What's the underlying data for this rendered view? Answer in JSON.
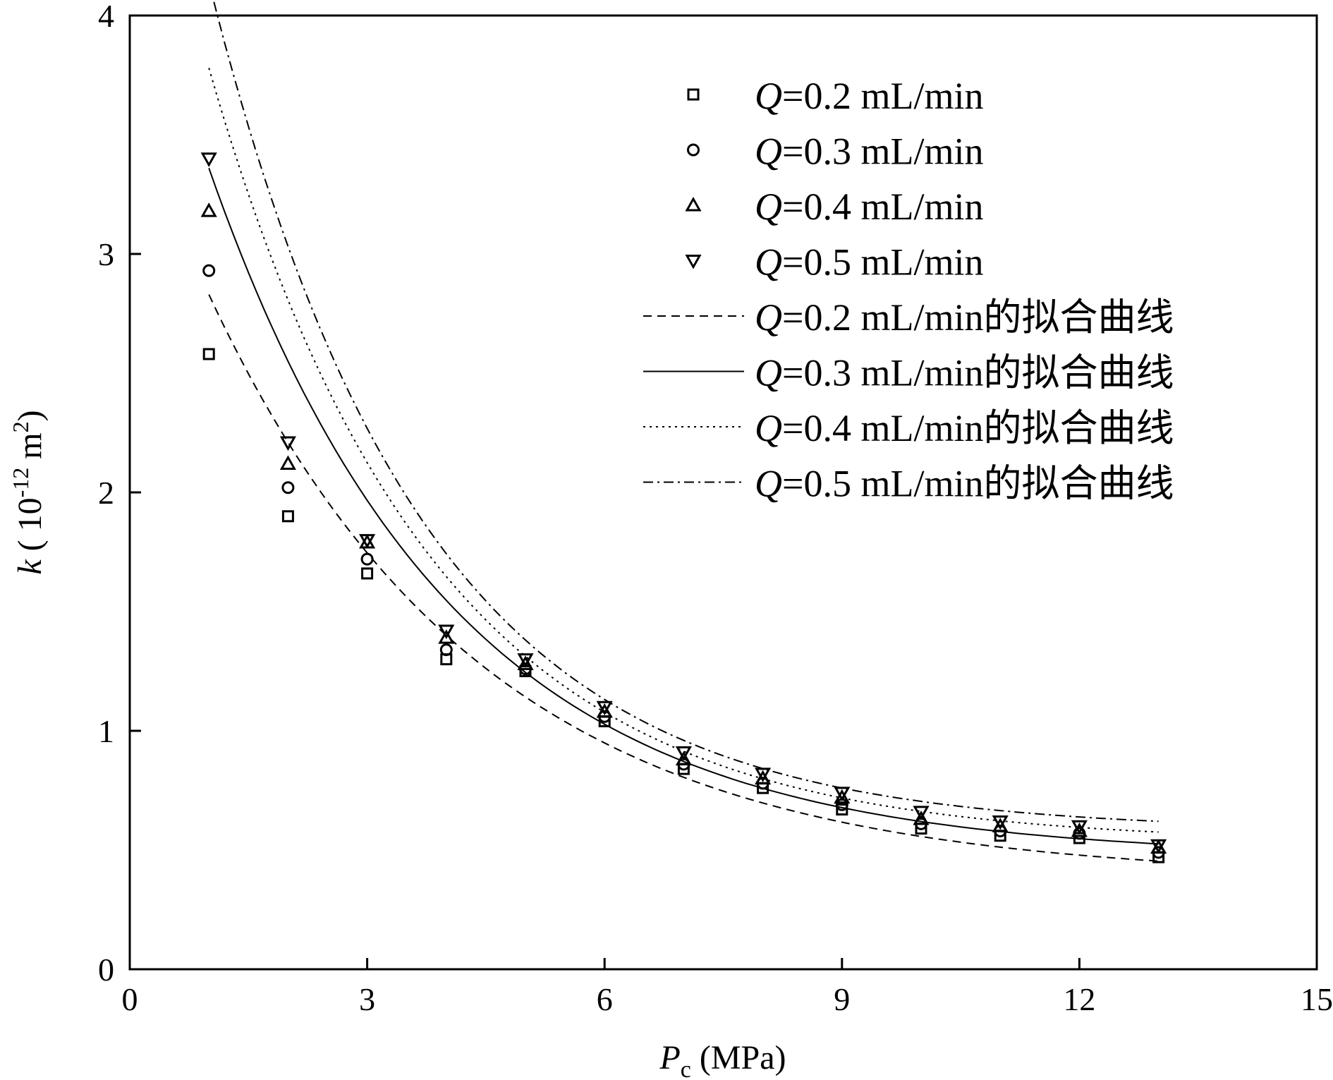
{
  "chart_data": {
    "type": "scatter",
    "title": "",
    "xlabel": {
      "symbol": "P",
      "subscript": "c",
      "unit": " (MPa)"
    },
    "ylabel": {
      "symbol": "k",
      "open": " ( 10",
      "exponent": "-12",
      "unit": " m",
      "unit_exponent": "2",
      "close": ")"
    },
    "xlim": [
      0,
      15
    ],
    "ylim": [
      0,
      4
    ],
    "xticks": [
      0,
      3,
      6,
      9,
      12,
      15
    ],
    "yticks": [
      0,
      1,
      2,
      3,
      4
    ],
    "grid": false,
    "legend_position": "top-right",
    "x": [
      1,
      2,
      3,
      4,
      5,
      6,
      7,
      8,
      9,
      10,
      11,
      12,
      13
    ],
    "series": [
      {
        "name": "Q=0.2 mL/min",
        "name_symbol": "Q",
        "name_rest": "=0.2 mL/min",
        "marker": "square",
        "values": [
          2.58,
          1.9,
          1.66,
          1.3,
          1.25,
          1.04,
          0.84,
          0.76,
          0.67,
          0.59,
          0.56,
          0.55,
          0.47
        ]
      },
      {
        "name": "Q=0.3 mL/min",
        "name_symbol": "Q",
        "name_rest": "=0.3 mL/min",
        "marker": "circle",
        "values": [
          2.93,
          2.02,
          1.72,
          1.34,
          1.26,
          1.06,
          0.86,
          0.78,
          0.69,
          0.61,
          0.58,
          0.57,
          0.49
        ]
      },
      {
        "name": "Q=0.4 mL/min",
        "name_symbol": "Q",
        "name_rest": "=0.4 mL/min",
        "marker": "triangle-up",
        "values": [
          3.18,
          2.12,
          1.79,
          1.39,
          1.28,
          1.08,
          0.88,
          0.8,
          0.72,
          0.63,
          0.6,
          0.58,
          0.51
        ]
      },
      {
        "name": "Q=0.5 mL/min",
        "name_symbol": "Q",
        "name_rest": "=0.5 mL/min",
        "marker": "triangle-down",
        "values": [
          3.4,
          2.21,
          1.8,
          1.42,
          1.3,
          1.1,
          0.91,
          0.82,
          0.74,
          0.66,
          0.62,
          0.6,
          0.52
        ]
      }
    ],
    "fits": [
      {
        "name": "Q=0.2 mL/min的拟合曲线",
        "name_symbol": "Q",
        "name_rest": "=0.2 mL/min的拟合曲线",
        "dash": "dashed",
        "a": 2.45,
        "b": 0.292,
        "c": 0.38
      },
      {
        "name": "Q=0.3 mL/min的拟合曲线",
        "name_symbol": "Q",
        "name_rest": "=0.3 mL/min的拟合曲线",
        "dash": "solid",
        "a": 2.89,
        "b": 0.329,
        "c": 0.47
      },
      {
        "name": "Q=0.4 mL/min的拟合曲线",
        "name_symbol": "Q",
        "name_rest": "=0.4 mL/min的拟合曲线",
        "dash": "dotted",
        "a": 3.25,
        "b": 0.356,
        "c": 0.53
      },
      {
        "name": "Q=0.5 mL/min的拟合曲线",
        "name_symbol": "Q",
        "name_rest": "=0.5 mL/min的拟合曲线",
        "dash": "dash-dot",
        "a": 3.56,
        "b": 0.373,
        "c": 0.58
      }
    ]
  }
}
